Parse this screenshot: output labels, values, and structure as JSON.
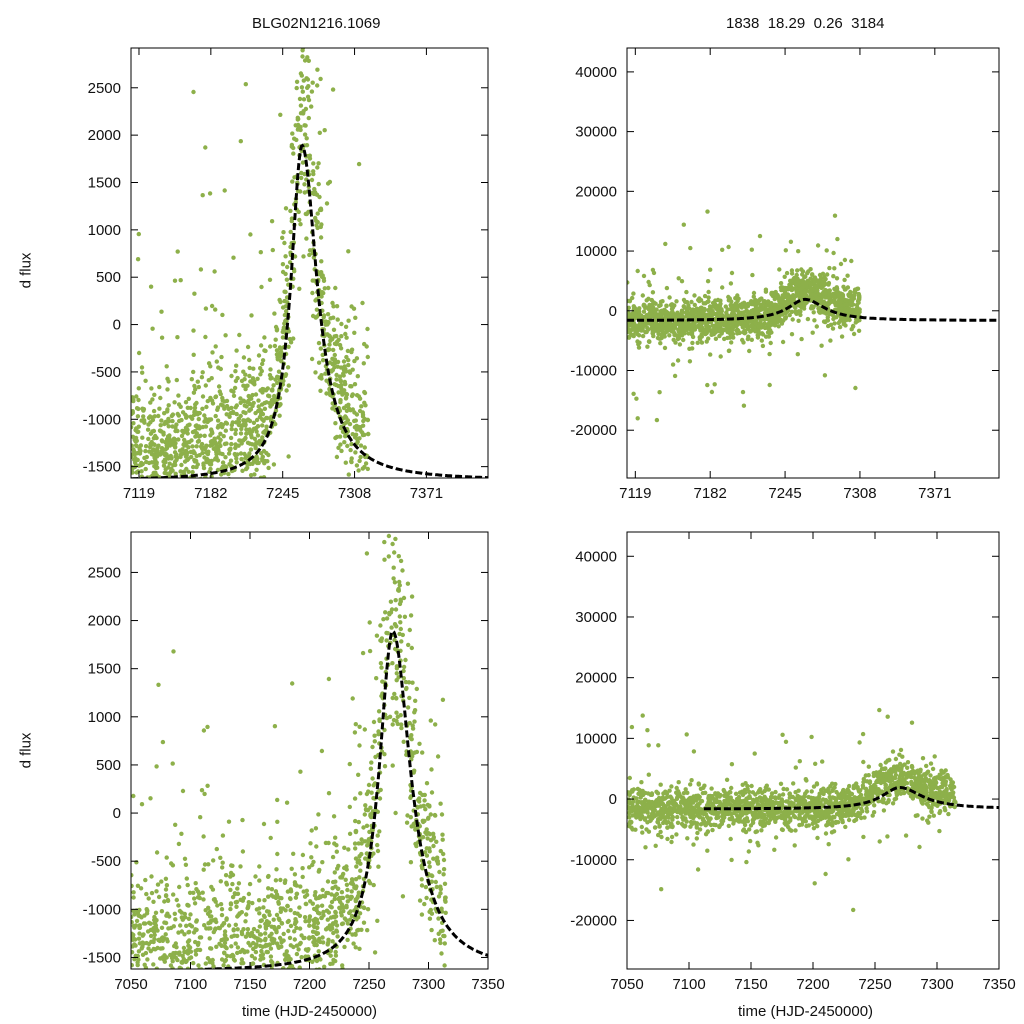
{
  "figure": {
    "title_left": "BLG02N1216.1069",
    "title_right": "1838  18.29  0.26  3184",
    "ylabel": "d flux",
    "xlabel": "time (HJD-2450000)",
    "colors": {
      "points": "#8db04a",
      "model": "#000000",
      "axis": "#000000"
    }
  },
  "chart_data": [
    {
      "id": "top-left",
      "type": "scatter",
      "xlim": [
        7112,
        7425
      ],
      "ylim": [
        -1620,
        2920
      ],
      "xticks": [
        7119,
        7182,
        7245,
        7308,
        7371
      ],
      "yticks": [
        -1500,
        -1000,
        -500,
        0,
        500,
        1000,
        1500,
        2000,
        2500
      ],
      "model": {
        "t0": 7262,
        "peak": 1890,
        "base": -1650,
        "width_rise": 12,
        "width_fall": 16
      },
      "data_span": [
        7112,
        7320
      ],
      "point_count": 1500,
      "title": "BLG02N1216.1069",
      "ylabel": "d flux"
    },
    {
      "id": "top-right",
      "type": "scatter",
      "xlim": [
        7112,
        7425
      ],
      "ylim": [
        -28000,
        44000
      ],
      "xticks": [
        7119,
        7182,
        7245,
        7308,
        7371
      ],
      "yticks": [
        -20000,
        -10000,
        0,
        10000,
        20000,
        30000,
        40000
      ],
      "model": {
        "t0": 7262,
        "peak": 1900,
        "base": -1650,
        "width_rise": 18,
        "width_fall": 20
      },
      "data_span": [
        7112,
        7308
      ],
      "point_count": 1800,
      "title": "1838  18.29  0.26  3184"
    },
    {
      "id": "bottom-left",
      "type": "scatter",
      "xlim": [
        7050,
        7350
      ],
      "ylim": [
        -1620,
        2920
      ],
      "xticks": [
        7050,
        7100,
        7150,
        7200,
        7250,
        7300,
        7350
      ],
      "yticks": [
        -1500,
        -1000,
        -500,
        0,
        500,
        1000,
        1500,
        2000,
        2500
      ],
      "model": {
        "t0": 7270,
        "peak": 1890,
        "base": -1650,
        "width_rise": 14,
        "width_fall": 18
      },
      "data_span": [
        7050,
        7315
      ],
      "point_count": 1500,
      "ylabel": "d flux",
      "xlabel": "time (HJD-2450000)"
    },
    {
      "id": "bottom-right",
      "type": "scatter",
      "xlim": [
        7050,
        7350
      ],
      "ylim": [
        -28000,
        44000
      ],
      "xticks": [
        7050,
        7100,
        7150,
        7200,
        7250,
        7300,
        7350
      ],
      "yticks": [
        -20000,
        -10000,
        0,
        10000,
        20000,
        30000,
        40000
      ],
      "model": {
        "t0": 7270,
        "peak": 1900,
        "base": -1650,
        "width_rise": 18,
        "width_fall": 22
      },
      "data_span": [
        7050,
        7315
      ],
      "point_count": 1800,
      "xlabel": "time (HJD-2450000)"
    }
  ]
}
